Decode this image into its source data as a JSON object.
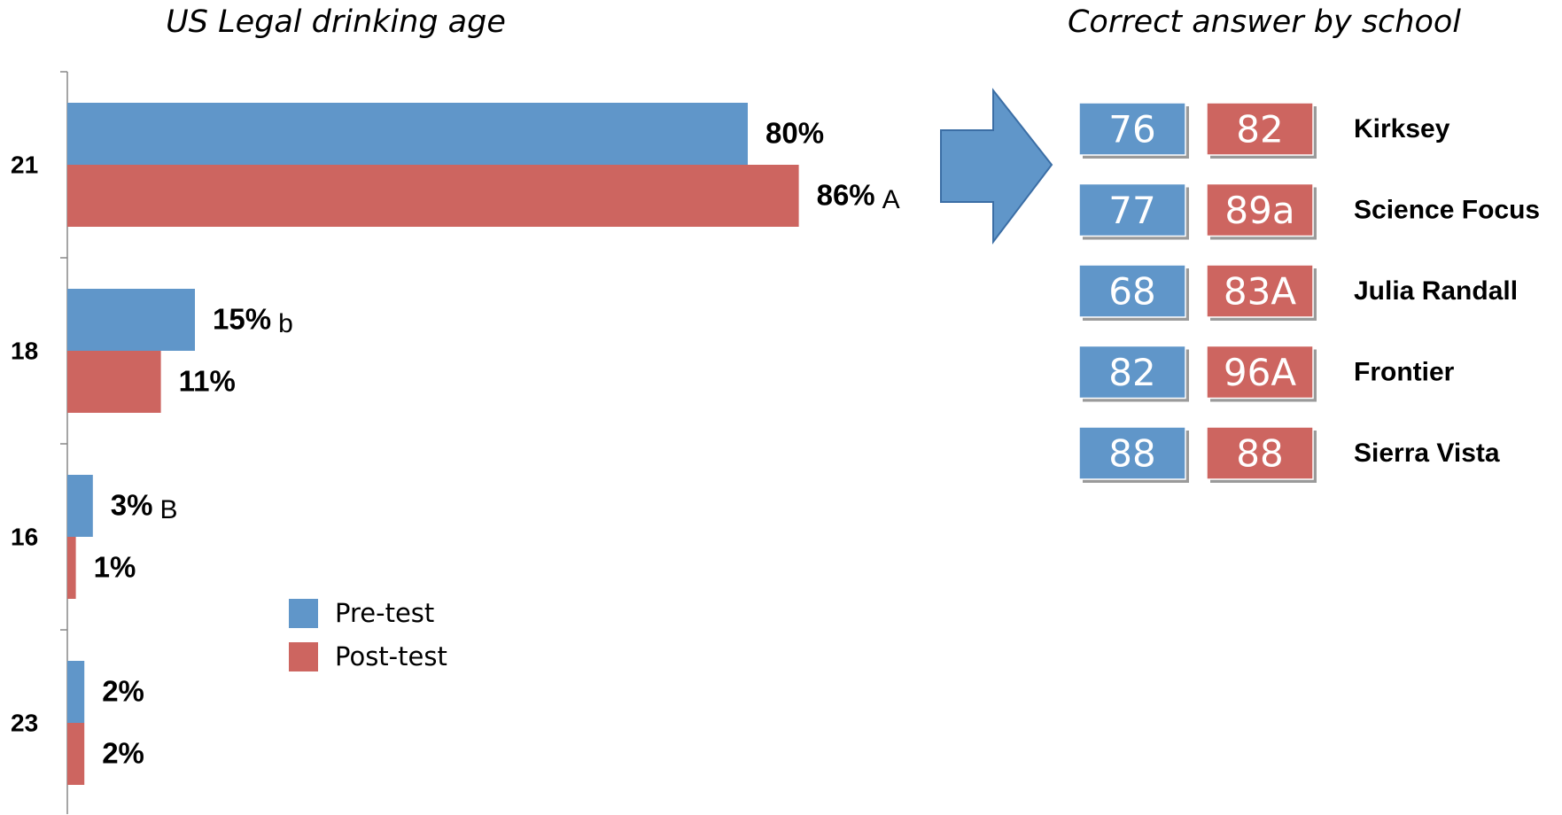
{
  "chart_data": {
    "type": "bar",
    "orientation": "horizontal",
    "title": "US Legal drinking age",
    "categories": [
      "21",
      "18",
      "16",
      "23"
    ],
    "series": [
      {
        "name": "Pre-test",
        "color": "#6096c9",
        "values": [
          80,
          15,
          3,
          2
        ],
        "value_labels": [
          "80%",
          "15%",
          "3%",
          "2%"
        ],
        "letters": [
          null,
          "b",
          "B",
          null
        ]
      },
      {
        "name": "Post-test",
        "color": "#cd6560",
        "values": [
          86,
          11,
          1,
          2
        ],
        "value_labels": [
          "86%",
          "11%",
          "1%",
          "2%"
        ],
        "letters": [
          "A",
          null,
          null,
          null
        ]
      }
    ],
    "xlim": [
      0,
      100
    ],
    "legend": "lower-center"
  },
  "school_table": {
    "title": "Correct answer by school",
    "pre_color": "#6096c9",
    "post_color": "#cd6560",
    "rows": [
      {
        "school": "Kirksey",
        "pre": "76",
        "post": "82"
      },
      {
        "school": "Science Focus",
        "pre": "77",
        "post": "89a"
      },
      {
        "school": "Julia Randall",
        "pre": "68",
        "post": "83A"
      },
      {
        "school": "Frontier",
        "pre": "82",
        "post": "96A"
      },
      {
        "school": "Sierra Vista",
        "pre": "88",
        "post": "88"
      }
    ]
  }
}
